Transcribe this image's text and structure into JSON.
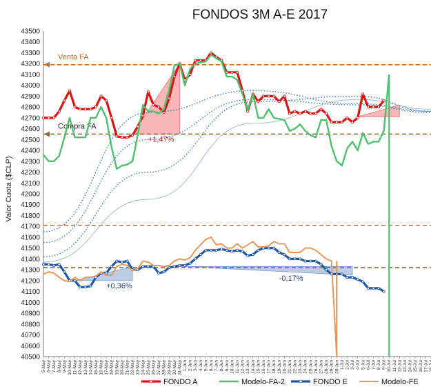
{
  "chart_data": {
    "type": "line",
    "title": "FONDOS 3M A-E 2017",
    "ylabel": "Valor Cuota ($CLP)",
    "xlabel": "",
    "ylim": [
      40500,
      43500
    ],
    "ytick_step": 100,
    "grid": false,
    "legend_position": "bottom",
    "x": [
      "5-May",
      "6-May",
      "7-May",
      "8-May",
      "9-May",
      "10-May",
      "11-May",
      "12-May",
      "13-May",
      "14-May",
      "15-May",
      "16-May",
      "17-May",
      "18-May",
      "19-May",
      "20-May",
      "21-May",
      "22-May",
      "23-May",
      "24-May",
      "25-May",
      "26-May",
      "27-May",
      "28-May",
      "29-May",
      "30-May",
      "31-May",
      "1-Jun",
      "2-Jun",
      "3-Jun",
      "4-Jun",
      "5-Jun",
      "6-Jun",
      "7-Jun",
      "8-Jun",
      "9-Jun",
      "10-Jun",
      "11-Jun",
      "12-Jun",
      "13-Jun",
      "14-Jun",
      "15-Jun",
      "16-Jun",
      "17-Jun",
      "18-Jun",
      "19-Jun",
      "20-Jun",
      "21-Jun",
      "22-Jun",
      "23-Jun",
      "24-Jun",
      "25-Jun",
      "26-Jun",
      "27-Jun",
      "28-Jun",
      "29-Jun",
      "30-Jun",
      "1-Jul",
      "2-Jul",
      "3-Jul",
      "4-Jul",
      "5-Jul",
      "6-Jul",
      "7-Jul",
      "8-Jul",
      "9-Jul",
      "10-Jul",
      "11-Jul",
      "12-Jul",
      "13-Jul",
      "14-Jul",
      "15-Jul",
      "16-Jul",
      "17-Jul",
      "18-Jul"
    ],
    "series": [
      {
        "name": "FONDO A",
        "color": "#e01010",
        "style": "solid-markers",
        "values": [
          42700,
          42700,
          42700,
          42760,
          42860,
          42950,
          42800,
          42780,
          42780,
          42780,
          42800,
          42900,
          42860,
          42700,
          42530,
          42520,
          42520,
          42540,
          42620,
          42720,
          42940,
          42820,
          42800,
          42750,
          42880,
          43080,
          43200,
          43050,
          43100,
          43230,
          43230,
          43230,
          43300,
          43260,
          43230,
          43120,
          43120,
          43120,
          42950,
          42760,
          42920,
          42850,
          42900,
          42900,
          42900,
          42850,
          42900,
          42740,
          42760,
          42740,
          42760,
          42740,
          42740,
          42780,
          42740,
          42660,
          42660,
          42660,
          42700,
          42660,
          42700,
          42920,
          42800,
          42800,
          42800,
          42860,
          null,
          null,
          null,
          null,
          null,
          null,
          null,
          null,
          null
        ]
      },
      {
        "name": "Modelo-FA-2",
        "color": "#4dbf6e",
        "style": "solid",
        "values": [
          42360,
          42300,
          42300,
          42350,
          42520,
          42700,
          42520,
          42520,
          42520,
          42700,
          42700,
          42800,
          42700,
          42430,
          42230,
          42260,
          42270,
          42300,
          42540,
          42820,
          42760,
          42760,
          42740,
          42780,
          42960,
          43180,
          43200,
          43000,
          43150,
          43200,
          43210,
          43220,
          43280,
          43250,
          43220,
          43080,
          43080,
          43050,
          42920,
          42770,
          42920,
          42700,
          42700,
          42780,
          42700,
          42690,
          42680,
          42580,
          42600,
          42640,
          42580,
          42540,
          42520,
          42680,
          42680,
          42440,
          42300,
          42260,
          42420,
          42480,
          42400,
          42560,
          42460,
          42480,
          42480,
          42580,
          43100,
          null,
          null,
          null,
          null,
          null,
          null,
          null,
          null
        ]
      },
      {
        "name": "FONDO E",
        "color": "#1e56a8",
        "style": "solid-markers",
        "values": [
          41350,
          41350,
          41340,
          41350,
          41280,
          41200,
          41200,
          41140,
          41140,
          41150,
          41230,
          41270,
          41270,
          41330,
          41380,
          41370,
          41380,
          41300,
          41300,
          41330,
          41330,
          41330,
          41270,
          41280,
          41320,
          41330,
          41340,
          41340,
          41360,
          41400,
          41440,
          41480,
          41480,
          41480,
          41490,
          41480,
          41470,
          41480,
          41470,
          41430,
          41440,
          41480,
          41500,
          41500,
          41500,
          41460,
          41440,
          41400,
          41400,
          41400,
          41380,
          41380,
          41380,
          41350,
          41300,
          41260,
          41260,
          41260,
          41230,
          41230,
          41210,
          41190,
          41130,
          41130,
          41130,
          41100,
          null,
          null,
          null,
          null,
          null,
          null,
          null,
          null,
          null
        ]
      },
      {
        "name": "Modelo-FE",
        "color": "#e8975a",
        "style": "solid",
        "values": [
          41260,
          41280,
          41270,
          41230,
          41200,
          41190,
          41230,
          41200,
          41230,
          41230,
          41240,
          41280,
          41250,
          41250,
          41330,
          41350,
          41340,
          41290,
          41310,
          41380,
          41370,
          41340,
          41340,
          41330,
          41340,
          41380,
          41400,
          41390,
          41410,
          41480,
          41530,
          41580,
          41600,
          41530,
          41540,
          41500,
          41500,
          41540,
          41500,
          41530,
          41560,
          41510,
          41510,
          41520,
          41560,
          41540,
          41540,
          41460,
          41460,
          41460,
          41500,
          41500,
          41480,
          41440,
          41400,
          41380,
          40500,
          null,
          null,
          null,
          null,
          null,
          null,
          null,
          null,
          null,
          null,
          null,
          null,
          null,
          null,
          null,
          null,
          null,
          null
        ]
      }
    ],
    "trend_lines": [
      {
        "color": "#2a6db5",
        "style": "dotted",
        "x": [
          0,
          20,
          40,
          60,
          74
        ],
        "y": [
          41550,
          42500,
          42870,
          42820,
          42750
        ]
      },
      {
        "color": "#2a6db5",
        "style": "dotted",
        "x": [
          0,
          20,
          40,
          60,
          74
        ],
        "y": [
          41420,
          42200,
          42850,
          42900,
          42760
        ]
      },
      {
        "color": "#2a6db5",
        "style": "dotted",
        "x": [
          0,
          20,
          40,
          60,
          74
        ],
        "y": [
          41650,
          42750,
          42950,
          42830,
          42760
        ]
      },
      {
        "color": "#9bb3c8",
        "style": "solid-thin",
        "x": [
          0,
          20,
          40,
          60,
          74
        ],
        "y": [
          41370,
          41950,
          42650,
          42870,
          42780
        ]
      }
    ],
    "reference_lines": [
      {
        "label": "Venta FA",
        "y": 43190,
        "color": "#d2691e",
        "style": "dashed-arrow",
        "label_color": "#d2691e"
      },
      {
        "label": "Compra FA",
        "y": 42550,
        "color": "#8b6d3a",
        "style": "dashed-arrow",
        "label_color": "#222222"
      },
      {
        "label": "",
        "y": 41710,
        "color": "#d2691e",
        "style": "dashed"
      },
      {
        "label": "",
        "y": 41320,
        "color": "#8b6d3a",
        "style": "dashed"
      }
    ],
    "vertical_lines": [
      {
        "x": 56,
        "color": "#e8975a",
        "from": 41380,
        "to": 40500
      },
      {
        "x": 66,
        "color": "#4dbf6e",
        "from": 43100,
        "to": 40500
      }
    ],
    "annotations": [
      {
        "text": "+1,47%",
        "color": "#d01818",
        "x": 20,
        "y": 42480
      },
      {
        "text": "+0,36%",
        "color": "#1e3a7a",
        "x": 12,
        "y": 41130
      },
      {
        "text": "-0,17%",
        "color": "#1e3a7a",
        "x": 45,
        "y": 41200
      }
    ],
    "shaded_regions": [
      {
        "color": "#e01010",
        "opacity": 0.3,
        "x": [
          17,
          26,
          26,
          17
        ],
        "y": [
          42550,
          43200,
          42550,
          42550
        ]
      },
      {
        "color": "#e01010",
        "opacity": 0.3,
        "x": [
          60,
          68,
          68
        ],
        "y": [
          42710,
          42820,
          42710
        ]
      },
      {
        "color": "#1e56a8",
        "opacity": 0.3,
        "x": [
          6,
          17,
          17
        ],
        "y": [
          41200,
          41330,
          41200
        ]
      },
      {
        "color": "#1e56a8",
        "opacity": 0.3,
        "x": [
          27,
          59,
          59
        ],
        "y": [
          41330,
          41330,
          41250
        ]
      }
    ]
  }
}
